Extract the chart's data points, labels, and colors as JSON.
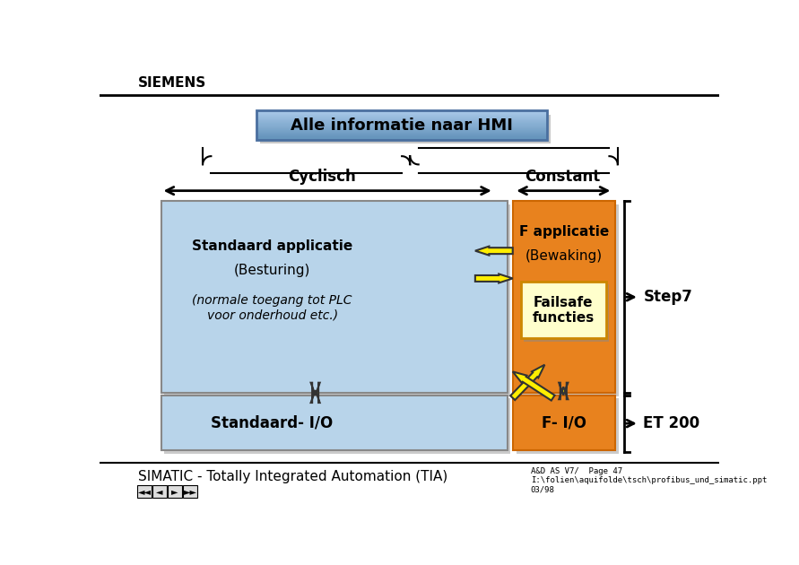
{
  "title": "Alle informatie naar HMI",
  "siemens_text": "SIEMENS",
  "footer_text": "SIMATIC - Totally Integrated Automation (TIA)",
  "footer_right": "A&D AS V7/  Page 47\nI:\\folien\\aquifolde\\tsch\\profibus_und_simatic.ppt\n03/98",
  "cyclisch_label": "Cyclisch",
  "constant_label": "Constant",
  "step7_label": "Step7",
  "et200_label": "ET 200",
  "std_app_label": "Standaard applicatie",
  "besturing_label": "(Besturing)",
  "normale_label": "(normale toegang tot PLC\nvoor onderhoud etc.)",
  "f_app_label": "F applicatie",
  "bewaking_label": "(Bewaking)",
  "failsafe_label": "Failsafe\nfuncties",
  "std_io_label": "Standaard- I/O",
  "f_io_label": "F- I/O",
  "bg_color": "#ffffff",
  "blue_light": "#b8d4ea",
  "blue_dark": "#6090b8",
  "orange_color": "#e8821e",
  "orange_dark": "#cc6600",
  "failsafe_bg": "#ffffcc",
  "title_grad_top": "#a8c8e8",
  "title_grad_bot": "#6090b8",
  "title_edge": "#4a6f9f",
  "shadow_color": "#999999",
  "arrow_fill": "#ffee00",
  "arrow_edge": "#333333",
  "text_dark": "#000000",
  "text_white": "#ffffff",
  "gray_box_edge": "#888888"
}
